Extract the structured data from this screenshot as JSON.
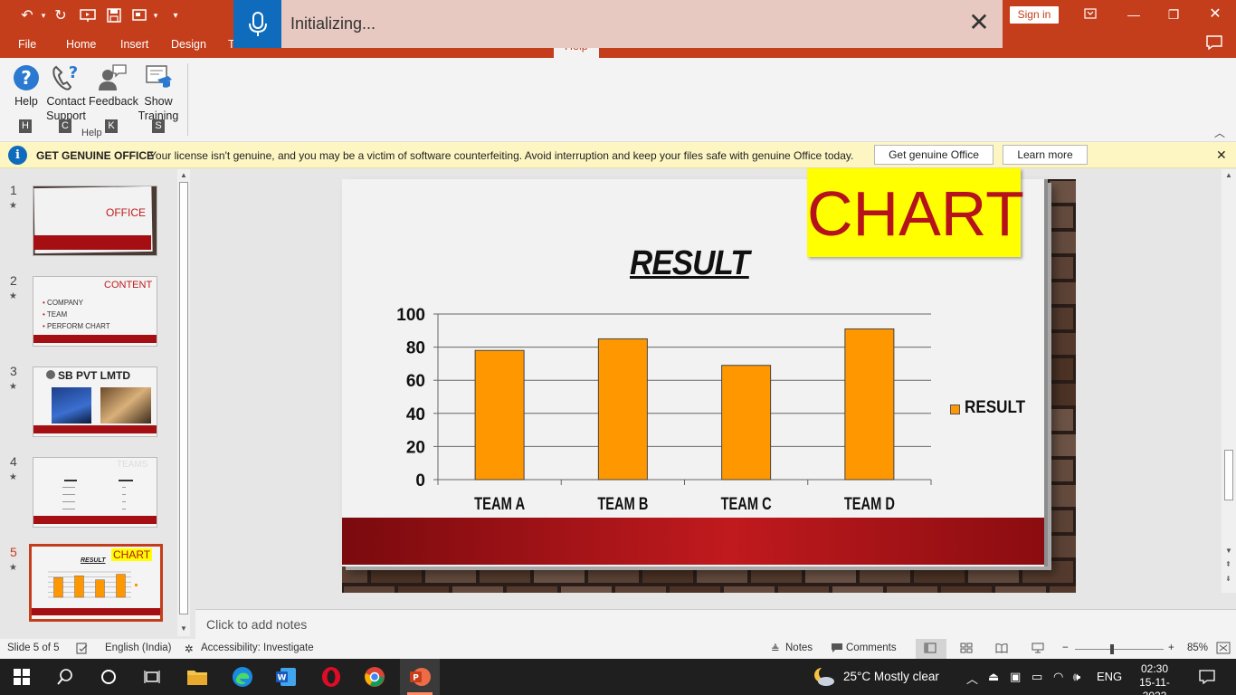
{
  "titlebar": {
    "tabs": [
      "File",
      "Home",
      "Insert",
      "Design",
      "Transitions",
      "Help"
    ],
    "active_tab": "Help",
    "sign_in": "Sign in"
  },
  "dictation": {
    "status": "Initializing..."
  },
  "ribbon": {
    "buttons": [
      {
        "label1": "Help",
        "label2": "",
        "keytip": "H"
      },
      {
        "label1": "Contact",
        "label2": "Support",
        "keytip": "C"
      },
      {
        "label1": "Feedback",
        "label2": "",
        "keytip": "K"
      },
      {
        "label1": "Show",
        "label2": "Training",
        "keytip": "S"
      }
    ],
    "group_label": "Help"
  },
  "message_bar": {
    "title": "GET GENUINE OFFICE",
    "text": "Your license isn't genuine, and you may be a victim of software counterfeiting. Avoid interruption and keep your files safe with genuine Office today.",
    "primary_button": "Get genuine Office",
    "secondary_button": "Learn more"
  },
  "thumbnails": [
    {
      "num": "1",
      "title": "OFFICE"
    },
    {
      "num": "2",
      "title": "CONTENT",
      "bullets": [
        "COMPANY",
        "TEAM",
        "PERFORM CHART"
      ]
    },
    {
      "num": "3",
      "title": "SB PVT LMTD"
    },
    {
      "num": "4",
      "title": "TEAMS"
    },
    {
      "num": "5",
      "title": "CHART",
      "chart_title": "RESULT"
    }
  ],
  "slide": {
    "badge": "CHART",
    "chart_title": "RESULT"
  },
  "chart_data": {
    "type": "bar",
    "title": "RESULT",
    "categories": [
      "TEAM A",
      "TEAM B",
      "TEAM C",
      "TEAM D"
    ],
    "series": [
      {
        "name": "RESULT",
        "values": [
          78,
          85,
          69,
          91
        ],
        "color": "#ff9800"
      }
    ],
    "ylim": [
      0,
      100
    ],
    "yticks": [
      "0",
      "20",
      "40",
      "60",
      "80",
      "100"
    ],
    "grid": true,
    "legend": "right"
  },
  "notes": {
    "placeholder": "Click to add notes"
  },
  "statusbar": {
    "slide": "Slide 5 of 5",
    "language": "English (India)",
    "accessibility": "Accessibility: Investigate",
    "notes": "Notes",
    "comments": "Comments",
    "zoom": "85%"
  },
  "taskbar": {
    "weather": "25°C  Mostly clear",
    "lang": "ENG",
    "time": "02:30",
    "date": "15-11-2022"
  }
}
